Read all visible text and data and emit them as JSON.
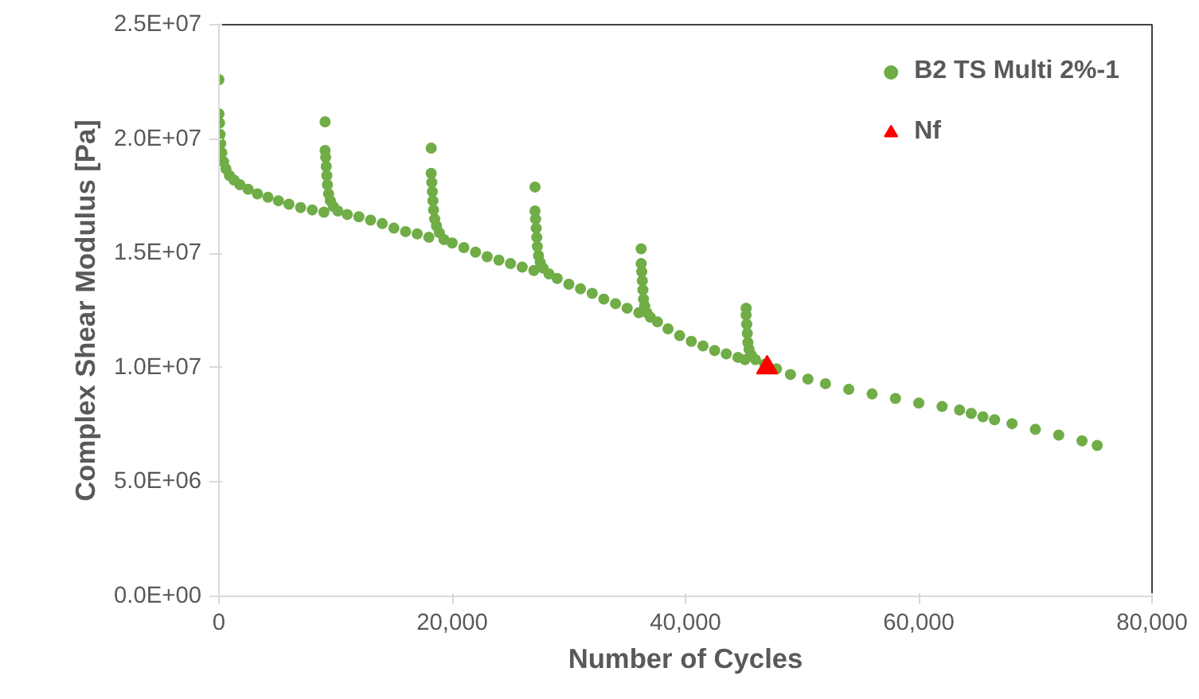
{
  "chart_data": {
    "type": "scatter",
    "xlabel": "Number of Cycles",
    "ylabel": "Complex Shear Modulus [Pa]",
    "xlim": [
      0,
      80000
    ],
    "ylim": [
      0,
      25000000
    ],
    "xticks": [
      {
        "value": 0,
        "label": "0"
      },
      {
        "value": 20000,
        "label": "20,000"
      },
      {
        "value": 40000,
        "label": "40,000"
      },
      {
        "value": 60000,
        "label": "60,000"
      },
      {
        "value": 80000,
        "label": "80,000"
      }
    ],
    "yticks": [
      {
        "value": 0,
        "label": "0.0E+00"
      },
      {
        "value": 5000000,
        "label": "5.0E+06"
      },
      {
        "value": 10000000,
        "label": "1.0E+07"
      },
      {
        "value": 15000000,
        "label": "1.5E+07"
      },
      {
        "value": 20000000,
        "label": "2.0E+07"
      },
      {
        "value": 25000000,
        "label": "2.5E+07"
      }
    ],
    "grid": false,
    "legend": "top right",
    "series": [
      {
        "name": "B2 TS Multi 2%-1",
        "color": "#70ad47",
        "marker": "circle",
        "x": [
          0,
          0,
          50,
          100,
          150,
          250,
          400,
          600,
          900,
          1300,
          1800,
          2500,
          3300,
          4200,
          5100,
          6000,
          7000,
          8000,
          9000,
          9100,
          9100,
          9150,
          9200,
          9250,
          9300,
          9400,
          9550,
          9800,
          10200,
          11000,
          12000,
          13000,
          14000,
          15000,
          16000,
          17000,
          18000,
          18200,
          18200,
          18250,
          18300,
          18350,
          18400,
          18500,
          18650,
          18900,
          19300,
          20000,
          21000,
          22000,
          23000,
          24000,
          25000,
          26000,
          27000,
          27100,
          27100,
          27150,
          27200,
          27250,
          27300,
          27400,
          27550,
          27800,
          28300,
          29000,
          30000,
          31000,
          32000,
          33000,
          34000,
          35000,
          36000,
          36200,
          36200,
          36250,
          36300,
          36350,
          36400,
          36500,
          36700,
          37000,
          37600,
          38500,
          39500,
          40500,
          41500,
          42500,
          43500,
          44500,
          45100,
          45200,
          45200,
          45250,
          45300,
          45350,
          45450,
          45650,
          46000,
          46800,
          47800,
          49000,
          50500,
          52000,
          54000,
          56000,
          58000,
          60000,
          62000,
          63500,
          64500,
          65500,
          66500,
          68000,
          70000,
          72000,
          74000,
          75300
        ],
        "values": [
          22600000,
          21100000,
          20700000,
          20200000,
          19800000,
          19400000,
          19000000,
          18700000,
          18400000,
          18200000,
          18000000,
          17800000,
          17600000,
          17450000,
          17300000,
          17150000,
          17000000,
          16900000,
          16800000,
          20750000,
          19500000,
          19200000,
          18800000,
          18400000,
          18000000,
          17600000,
          17300000,
          17050000,
          16850000,
          16700000,
          16600000,
          16450000,
          16300000,
          16100000,
          15950000,
          15850000,
          15700000,
          19600000,
          18500000,
          18100000,
          17700000,
          17300000,
          16900000,
          16500000,
          16200000,
          15900000,
          15600000,
          15450000,
          15250000,
          15050000,
          14850000,
          14700000,
          14550000,
          14400000,
          14250000,
          17900000,
          16850000,
          16500000,
          16100000,
          15700000,
          15300000,
          14900000,
          14600000,
          14350000,
          14100000,
          13900000,
          13650000,
          13450000,
          13250000,
          13000000,
          12800000,
          12600000,
          12400000,
          15200000,
          14550000,
          14200000,
          13800000,
          13400000,
          13000000,
          12700000,
          12400000,
          12200000,
          12000000,
          11700000,
          11400000,
          11150000,
          10950000,
          10750000,
          10600000,
          10450000,
          10350000,
          12600000,
          12300000,
          11900000,
          11500000,
          11100000,
          10800000,
          10550000,
          10350000,
          10150000,
          9950000,
          9700000,
          9500000,
          9300000,
          9050000,
          8850000,
          8650000,
          8450000,
          8300000,
          8150000,
          8000000,
          7850000,
          7720000,
          7550000,
          7300000,
          7050000,
          6800000,
          6600000
        ]
      },
      {
        "name": "Nf",
        "color": "#ff0000",
        "marker": "triangle",
        "x": [
          47000
        ],
        "values": [
          10000000
        ]
      }
    ]
  }
}
